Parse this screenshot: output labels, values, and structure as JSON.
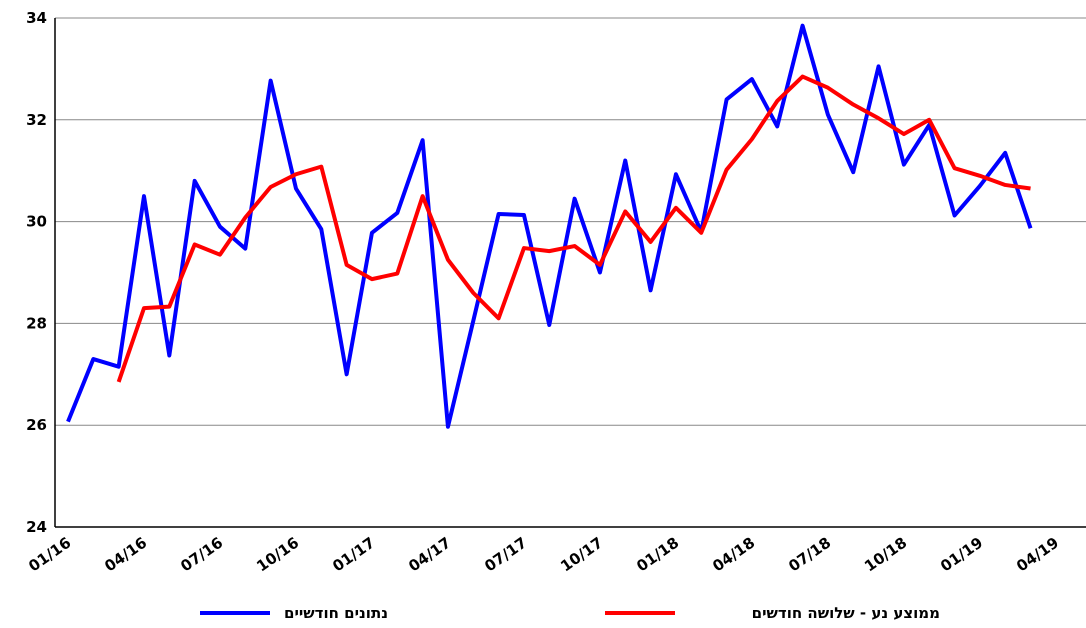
{
  "chart_data": {
    "type": "line",
    "categories": [
      "01/16",
      null,
      null,
      "04/16",
      null,
      null,
      "07/16",
      null,
      null,
      "10/16",
      null,
      null,
      "01/17",
      null,
      null,
      "04/17",
      null,
      null,
      "07/17",
      null,
      null,
      "10/17",
      null,
      null,
      "01/18",
      null,
      null,
      "04/18",
      null,
      null,
      "07/18",
      null,
      null,
      "10/18",
      null,
      null,
      "01/19",
      null,
      null,
      "04/19"
    ],
    "series": [
      {
        "name": "נתונים חודשיים",
        "color": "#0000ff",
        "values": [
          26.07,
          27.3,
          27.15,
          30.5,
          27.37,
          30.8,
          29.9,
          29.47,
          32.77,
          30.65,
          29.85,
          27.0,
          29.78,
          30.17,
          31.6,
          25.97,
          28.05,
          30.15,
          30.13,
          27.97,
          30.45,
          29.0,
          31.2,
          28.65,
          30.93,
          29.8,
          32.4,
          32.8,
          31.87,
          33.85,
          32.1,
          30.97,
          33.05,
          31.12,
          31.9,
          30.12,
          30.7,
          31.35,
          29.87,
          null
        ]
      },
      {
        "name": "ממוצע נע - שלושה חודשים",
        "color": "#ff0000",
        "values": [
          null,
          null,
          26.85,
          28.3,
          28.33,
          29.55,
          29.35,
          30.08,
          30.68,
          30.93,
          31.08,
          29.15,
          28.87,
          28.98,
          30.5,
          29.25,
          28.6,
          28.1,
          29.48,
          29.42,
          29.52,
          29.15,
          30.2,
          29.6,
          30.27,
          29.78,
          31.02,
          31.62,
          32.37,
          32.85,
          32.63,
          32.3,
          32.03,
          31.72,
          32.0,
          31.05,
          30.9,
          30.72,
          30.65,
          null
        ]
      }
    ],
    "ylim": [
      24,
      34
    ],
    "yticks": [
      24,
      26,
      28,
      30,
      32,
      34
    ],
    "grid": true,
    "legend": "bottom"
  }
}
